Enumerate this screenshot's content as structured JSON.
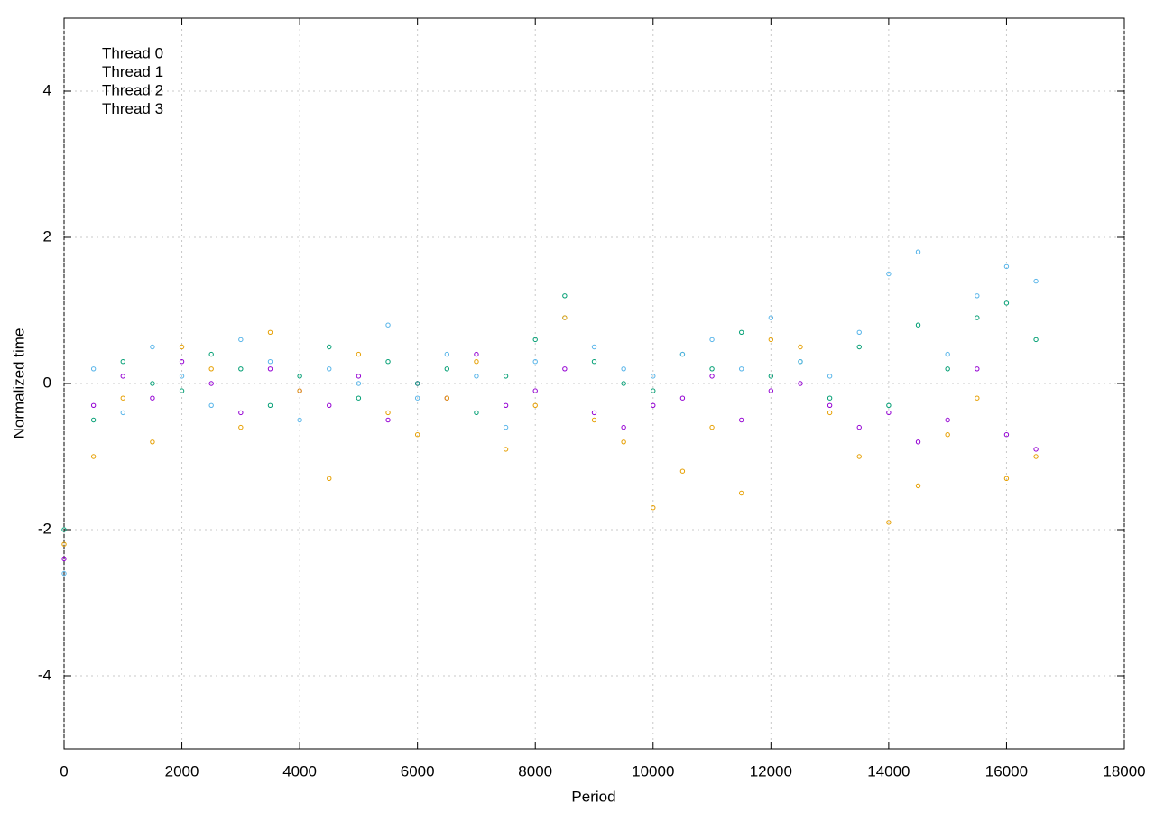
{
  "chart_data": {
    "type": "scatter",
    "xlabel": "Period",
    "ylabel": "Normalized time",
    "xlim": [
      0,
      18000
    ],
    "ylim": [
      -5,
      5
    ],
    "xticks": [
      0,
      2000,
      4000,
      6000,
      8000,
      10000,
      12000,
      14000,
      16000,
      18000
    ],
    "yticks": [
      -4,
      -2,
      0,
      2,
      4
    ],
    "grid": true,
    "legend": "upper left",
    "x": [
      0,
      500,
      1000,
      1500,
      2000,
      2500,
      3000,
      3500,
      4000,
      4500,
      5000,
      5500,
      6000,
      6500,
      7000,
      7500,
      8000,
      8500,
      9000,
      9500,
      10000,
      10500,
      11000,
      11500,
      12000,
      12500,
      13000,
      13500,
      14000,
      14500,
      15000,
      15500,
      16000,
      16500
    ],
    "series": [
      {
        "name": "Thread 0",
        "color": "#9400d3",
        "values": [
          -2.4,
          -0.3,
          0.1,
          -0.2,
          0.3,
          0.0,
          -0.4,
          0.2,
          -0.1,
          -0.3,
          0.1,
          -0.5,
          0.0,
          -0.2,
          0.4,
          -0.3,
          -0.1,
          0.2,
          -0.4,
          -0.6,
          -0.3,
          -0.2,
          0.1,
          -0.5,
          -0.1,
          0.0,
          -0.3,
          -0.6,
          -0.4,
          -0.8,
          -0.5,
          0.2,
          -0.7,
          -0.9
        ]
      },
      {
        "name": "Thread 1",
        "color": "#009e73",
        "values": [
          -2.0,
          -0.5,
          0.3,
          0.0,
          -0.1,
          0.4,
          0.2,
          -0.3,
          0.1,
          0.5,
          -0.2,
          0.3,
          0.0,
          0.2,
          -0.4,
          0.1,
          0.6,
          1.2,
          0.3,
          0.0,
          -0.1,
          0.4,
          0.2,
          0.7,
          0.1,
          0.3,
          -0.2,
          0.5,
          -0.3,
          0.8,
          0.2,
          0.9,
          1.1,
          0.6
        ]
      },
      {
        "name": "Thread 2",
        "color": "#56b4e9",
        "values": [
          -2.6,
          0.2,
          -0.4,
          0.5,
          0.1,
          -0.3,
          0.6,
          0.3,
          -0.5,
          0.2,
          0.0,
          0.8,
          -0.2,
          0.4,
          0.1,
          -0.6,
          0.3,
          0.9,
          0.5,
          0.2,
          0.1,
          0.4,
          0.6,
          0.2,
          0.9,
          0.3,
          0.1,
          0.7,
          1.5,
          1.8,
          0.4,
          1.2,
          1.6,
          1.4
        ]
      },
      {
        "name": "Thread 3",
        "color": "#e69f00",
        "values": [
          -2.2,
          -1.0,
          -0.2,
          -0.8,
          0.5,
          0.2,
          -0.6,
          0.7,
          -0.1,
          -1.3,
          0.4,
          -0.4,
          -0.7,
          -0.2,
          0.3,
          -0.9,
          -0.3,
          0.9,
          -0.5,
          -0.8,
          -1.7,
          -1.2,
          -0.6,
          -1.5,
          0.6,
          0.5,
          -0.4,
          -1.0,
          -1.9,
          -1.4,
          -0.7,
          -0.2,
          -1.3,
          -1.0
        ]
      }
    ]
  }
}
